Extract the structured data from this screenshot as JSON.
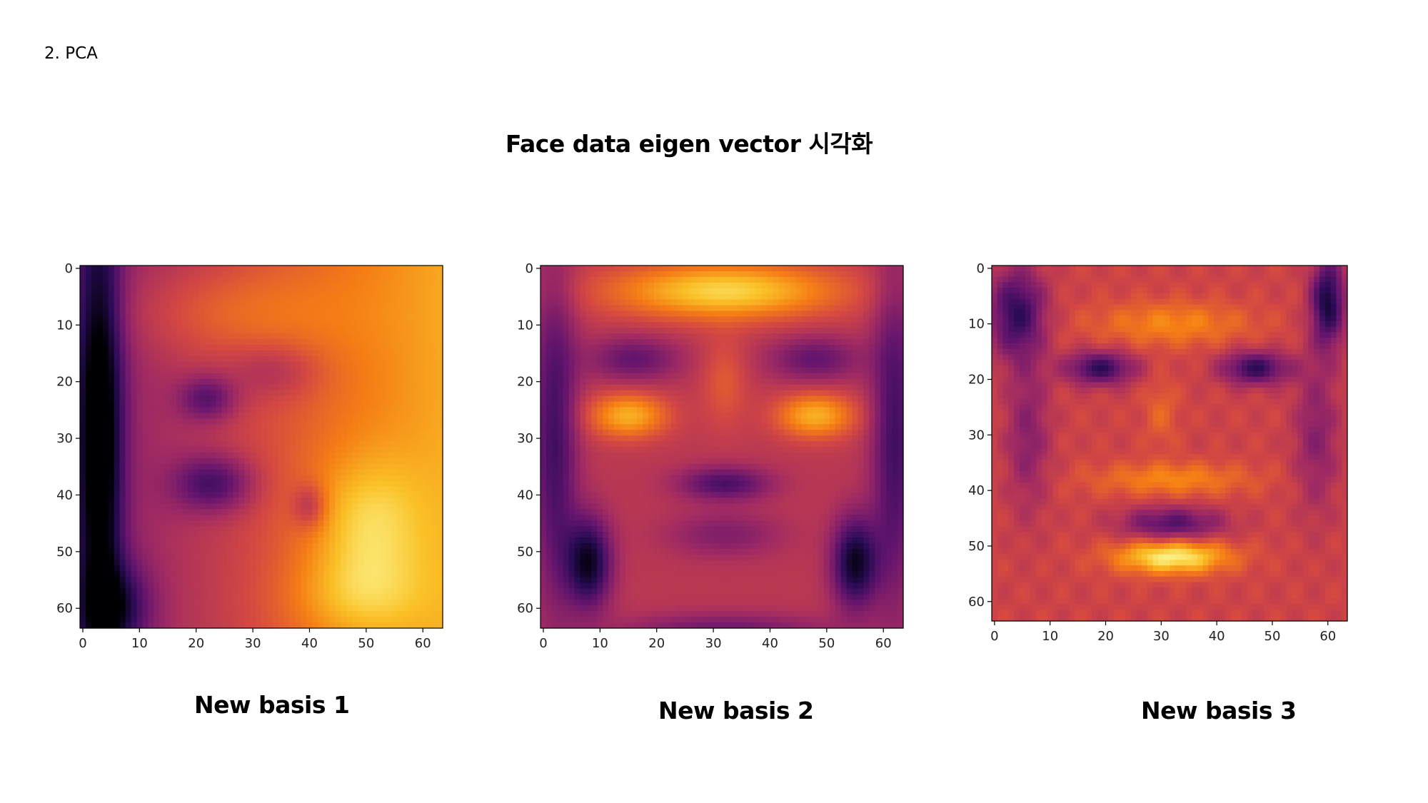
{
  "slide": {
    "section_label": "2. PCA",
    "title": "Face data eigen vector 시각화"
  },
  "colors": {
    "colormap": "inferno"
  },
  "chart_data": [
    {
      "type": "heatmap",
      "colormap": "inferno",
      "caption": "New basis 1",
      "image_size": [
        64,
        64
      ],
      "xticks": [
        0,
        10,
        20,
        30,
        40,
        50,
        60
      ],
      "yticks": [
        0,
        10,
        20,
        30,
        40,
        50,
        60
      ],
      "xlim": [
        -0.5,
        63.5
      ],
      "ylim": [
        63.5,
        -0.5
      ]
    },
    {
      "type": "heatmap",
      "colormap": "inferno",
      "caption": "New basis 2",
      "image_size": [
        64,
        64
      ],
      "xticks": [
        0,
        10,
        20,
        30,
        40,
        50,
        60
      ],
      "yticks": [
        0,
        10,
        20,
        30,
        40,
        50,
        60
      ],
      "xlim": [
        -0.5,
        63.5
      ],
      "ylim": [
        63.5,
        -0.5
      ]
    },
    {
      "type": "heatmap",
      "colormap": "inferno",
      "caption": "New basis 3",
      "image_size": [
        64,
        64
      ],
      "xticks": [
        0,
        10,
        20,
        30,
        40,
        50,
        60
      ],
      "yticks": [
        0,
        10,
        20,
        30,
        40,
        50,
        60
      ],
      "xlim": [
        -0.5,
        63.5
      ],
      "ylim": [
        63.5,
        -0.5
      ]
    }
  ]
}
